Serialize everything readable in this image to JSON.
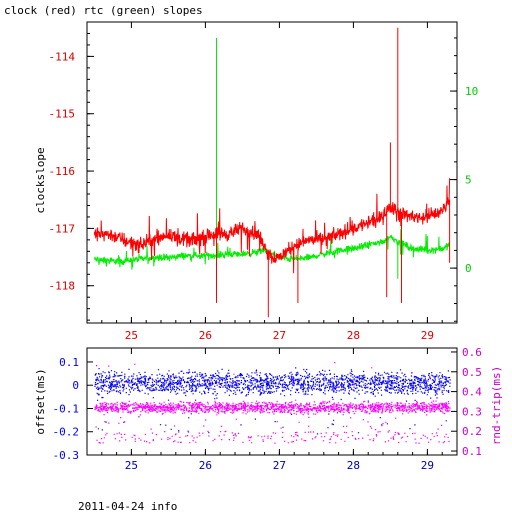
{
  "title": "clock (red) rtc (green) slopes",
  "footer": "2011-04-24 info",
  "colors": {
    "clock": "#ff0000",
    "rtc": "#00ee00",
    "offset": "#0000ff",
    "rndtrip": "#ff00ff",
    "axis_x": "#0000aa",
    "axis_left_top": "#dd0000",
    "axis_right_top": "#00cc00",
    "axis_left_bottom": "#0000ff",
    "axis_right_bottom": "#cc00cc"
  },
  "chart_data": [
    {
      "type": "line",
      "ylabel": "clockslope",
      "xlim": [
        24.4,
        29.4
      ],
      "ylim": [
        -118.65,
        -113.4
      ],
      "y2lim": [
        -3.1,
        13.9
      ],
      "xticks": [
        25,
        26,
        27,
        28,
        29
      ],
      "xtick_labels": [
        "25",
        "26",
        "27",
        "28",
        "29"
      ],
      "yticks": [
        -114,
        -115,
        -116,
        -117,
        -118
      ],
      "ytick_labels": [
        "-114",
        "-115",
        "-116",
        "-117",
        "-118"
      ],
      "y2ticks": [
        10,
        5,
        0
      ],
      "y2tick_labels": [
        "10",
        "5",
        "0"
      ],
      "series": [
        {
          "name": "clock",
          "axis": "left",
          "x": [
            24.5,
            24.7,
            24.9,
            25.1,
            25.3,
            25.5,
            25.7,
            25.9,
            26.1,
            26.3,
            26.5,
            26.7,
            26.8,
            26.9,
            27.0,
            27.2,
            27.4,
            27.6,
            27.8,
            28.0,
            28.2,
            28.4,
            28.5,
            28.6,
            28.8,
            29.0,
            29.2,
            29.3
          ],
          "y": [
            -117.1,
            -117.1,
            -117.2,
            -117.3,
            -117.2,
            -117.1,
            -117.2,
            -117.2,
            -117.1,
            -117.1,
            -117.0,
            -117.1,
            -117.3,
            -117.5,
            -117.5,
            -117.3,
            -117.2,
            -117.2,
            -117.1,
            -117.0,
            -116.9,
            -116.8,
            -116.6,
            -116.7,
            -116.8,
            -116.8,
            -116.7,
            -116.5
          ],
          "spikes": [
            {
              "x": 26.15,
              "y": -118.3
            },
            {
              "x": 26.85,
              "y": -118.55
            },
            {
              "x": 27.25,
              "y": -118.3
            },
            {
              "x": 28.45,
              "y": -118.2
            },
            {
              "x": 28.5,
              "y": -115.5
            },
            {
              "x": 28.6,
              "y": -113.5
            },
            {
              "x": 28.65,
              "y": -118.3
            },
            {
              "x": 29.3,
              "y": -117.6
            }
          ]
        },
        {
          "name": "rtc",
          "axis": "right",
          "x": [
            24.5,
            24.7,
            24.9,
            25.1,
            25.3,
            25.5,
            25.7,
            25.9,
            26.1,
            26.3,
            26.5,
            26.7,
            26.8,
            26.9,
            27.0,
            27.2,
            27.4,
            27.6,
            27.8,
            28.0,
            28.2,
            28.4,
            28.5,
            28.6,
            28.8,
            29.0,
            29.2,
            29.3
          ],
          "y": [
            0.5,
            0.4,
            0.4,
            0.5,
            0.6,
            0.6,
            0.7,
            0.7,
            0.7,
            0.8,
            0.8,
            0.9,
            1.0,
            0.8,
            0.6,
            0.5,
            0.6,
            0.8,
            1.0,
            1.1,
            1.3,
            1.5,
            1.8,
            1.5,
            1.1,
            1.0,
            1.1,
            1.3
          ],
          "spikes": [
            {
              "x": 26.15,
              "y": 13.0
            },
            {
              "x": 28.6,
              "y": -0.6
            }
          ]
        }
      ]
    },
    {
      "type": "scatter",
      "ylabel": "offset(ms)",
      "y2label": "rnd-trip(ms)",
      "xlim": [
        24.4,
        29.4
      ],
      "ylim": [
        -0.3,
        0.16
      ],
      "y2lim": [
        0.08,
        0.62
      ],
      "xticks": [
        25,
        26,
        27,
        28,
        29
      ],
      "xtick_labels": [
        "25",
        "26",
        "27",
        "28",
        "29"
      ],
      "yticks": [
        0.1,
        0,
        -0.1,
        -0.2,
        -0.3
      ],
      "ytick_labels": [
        "0.1",
        "0",
        "-0.1",
        "-0.2",
        "-0.3"
      ],
      "y2ticks": [
        0.6,
        0.5,
        0.4,
        0.3,
        0.2,
        0.1
      ],
      "y2tick_labels": [
        "0.6",
        "0.5",
        "0.4",
        "0.3",
        "0.2",
        "0.1"
      ],
      "series": [
        {
          "name": "offset",
          "axis": "left",
          "band_center": 0.01,
          "band_spread": 0.07,
          "outlier_low": -0.17
        },
        {
          "name": "rnd-trip",
          "axis": "right",
          "band_center": 0.32,
          "band_spread": 0.04,
          "outlier_low": 0.14,
          "outlier_high": 0.55
        }
      ]
    }
  ]
}
